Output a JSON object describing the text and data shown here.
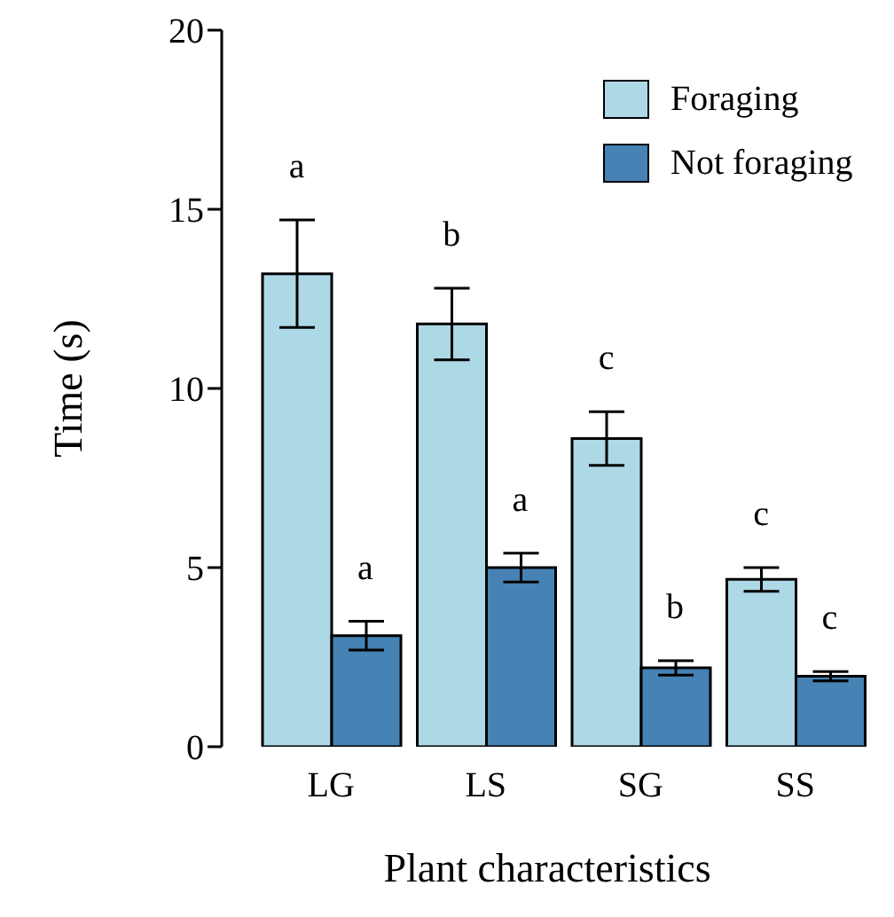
{
  "chart_data": {
    "type": "bar",
    "xlabel": "Plant characteristics",
    "ylabel": "Time (s)",
    "categories": [
      "LG",
      "LS",
      "SG",
      "SS"
    ],
    "series": [
      {
        "name": "Foraging",
        "color": "#add8e6",
        "values": [
          13.2,
          11.8,
          8.6,
          4.67
        ],
        "errors": [
          1.5,
          1.0,
          0.75,
          0.33
        ]
      },
      {
        "name": "Not foraging",
        "color": "#4682b4",
        "values": [
          3.1,
          5.0,
          2.2,
          1.97
        ],
        "errors": [
          0.4,
          0.4,
          0.2,
          0.13
        ]
      }
    ],
    "ylim": [
      0,
      20
    ],
    "yticks": [
      0,
      5,
      10,
      15,
      20
    ],
    "grid": false,
    "legend": "top right",
    "annotations": [
      "a",
      "a",
      "b",
      "a",
      "c",
      "b",
      "c",
      "c"
    ]
  }
}
